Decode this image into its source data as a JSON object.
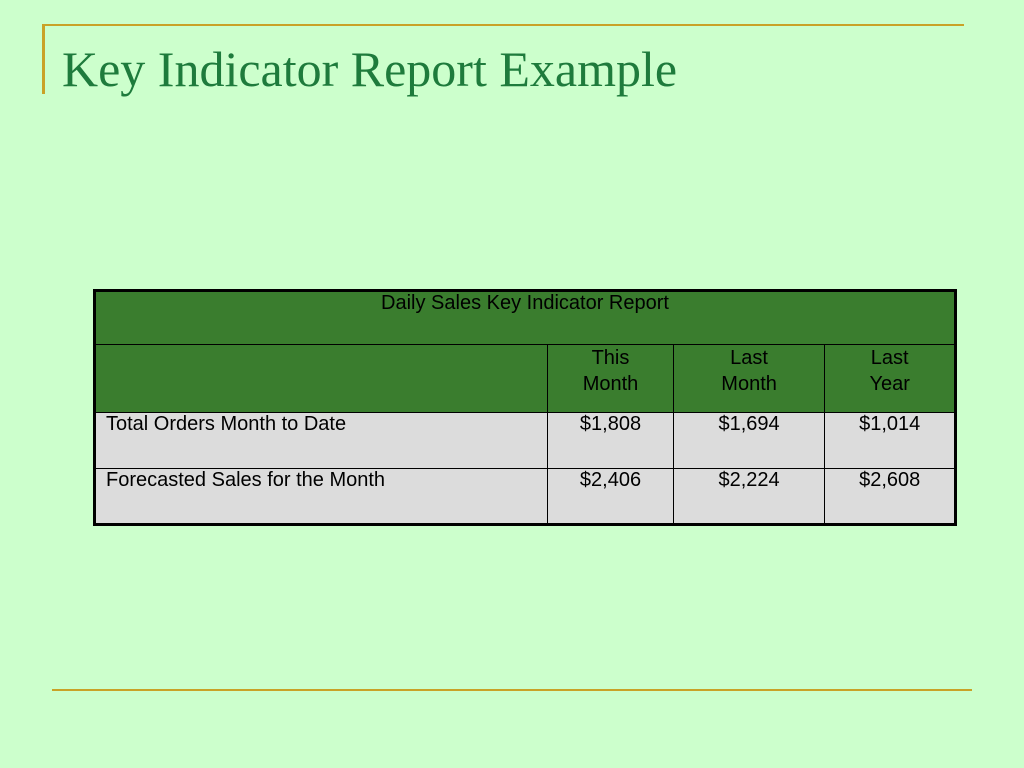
{
  "slide": {
    "title": "Key Indicator Report Example"
  },
  "report": {
    "title": "Daily Sales Key Indicator Report",
    "columns": [
      {
        "line1": "This",
        "line2": "Month"
      },
      {
        "line1": "Last",
        "line2": "Month"
      },
      {
        "line1": "Last",
        "line2": "Year"
      }
    ],
    "rows": [
      {
        "label": "Total Orders Month to Date",
        "values": [
          "$1,808",
          "$1,694",
          "$1,014"
        ]
      },
      {
        "label": "Forecasted Sales for the Month",
        "values": [
          "$2,406",
          "$2,224",
          "$2,608"
        ]
      }
    ]
  },
  "colors": {
    "background": "#ccffcc",
    "title": "#1e7b3c",
    "accent_line": "#c9a227",
    "table_header": "#3a7d2e",
    "table_body": "#dcdcdc"
  }
}
